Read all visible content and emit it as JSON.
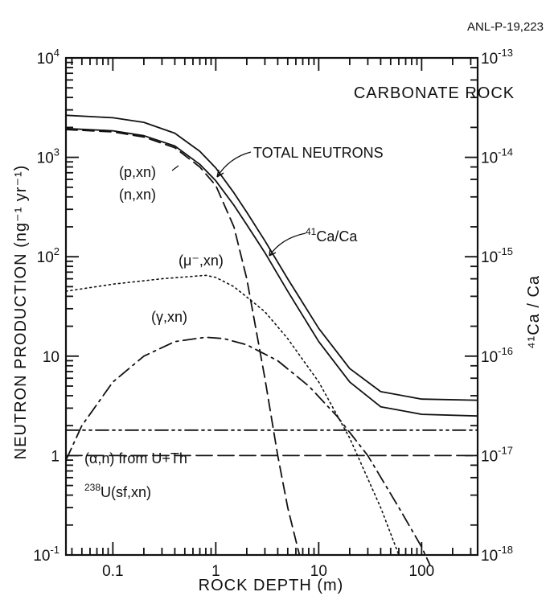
{
  "figure": {
    "ref_id": "ANL-P-19,223",
    "panel_label": "CARBONATE ROCK"
  },
  "chart_data": {
    "type": "line",
    "x_scale": "log",
    "y_scale": "log",
    "xlim": [
      0.035,
      350
    ],
    "ylim": [
      0.1,
      10000
    ],
    "y2lim": [
      1e-18,
      1e-13
    ],
    "xlabel": "ROCK DEPTH (m)",
    "ylabel": "NEUTRON PRODUCTION (ng⁻¹ yr⁻¹)",
    "y2label": "⁴¹Ca / Ca",
    "x_ticks": [
      {
        "value": 0.1,
        "label": "0.1"
      },
      {
        "value": 1,
        "label": "1"
      },
      {
        "value": 10,
        "label": "10"
      },
      {
        "value": 100,
        "label": "100"
      }
    ],
    "y_ticks": [
      {
        "value": 0.1,
        "base": "10",
        "exp": "-1"
      },
      {
        "value": 1,
        "base": "1",
        "exp": ""
      },
      {
        "value": 10,
        "base": "10",
        "exp": ""
      },
      {
        "value": 100,
        "base": "10",
        "exp": "2"
      },
      {
        "value": 1000,
        "base": "10",
        "exp": "3"
      },
      {
        "value": 10000,
        "base": "10",
        "exp": "4"
      }
    ],
    "y2_ticks": [
      {
        "value": 1e-18,
        "base": "10",
        "exp": "-18"
      },
      {
        "value": 1e-17,
        "base": "10",
        "exp": "-17"
      },
      {
        "value": 1e-16,
        "base": "10",
        "exp": "-16"
      },
      {
        "value": 1e-15,
        "base": "10",
        "exp": "-15"
      },
      {
        "value": 1e-14,
        "base": "10",
        "exp": "-14"
      },
      {
        "value": 1e-13,
        "base": "10",
        "exp": "-13"
      }
    ],
    "series": [
      {
        "name": "TOTAL NEUTRONS",
        "style": "solid",
        "x": [
          0.035,
          0.1,
          0.2,
          0.4,
          0.7,
          1,
          1.5,
          2,
          3,
          5,
          10,
          20,
          40,
          100,
          350
        ],
        "y": [
          1950,
          1850,
          1650,
          1300,
          850,
          580,
          330,
          210,
          110,
          45,
          14,
          5.5,
          3.1,
          2.6,
          2.5
        ]
      },
      {
        "name": "⁴¹Ca/Ca",
        "style": "solid",
        "x": [
          0.035,
          0.1,
          0.2,
          0.4,
          0.7,
          1,
          1.5,
          2,
          3,
          5,
          10,
          20,
          40,
          100,
          350
        ],
        "y": [
          2650,
          2500,
          2250,
          1750,
          1150,
          780,
          440,
          280,
          145,
          60,
          19,
          7.5,
          4.4,
          3.7,
          3.6
        ]
      },
      {
        "name": "(p,xn) (n,xn)",
        "style": "dashed",
        "x": [
          0.035,
          0.1,
          0.2,
          0.4,
          0.7,
          1,
          1.5,
          2,
          3,
          4,
          5,
          6.5
        ],
        "y": [
          1900,
          1800,
          1600,
          1250,
          800,
          520,
          200,
          60,
          6,
          1,
          0.3,
          0.1
        ]
      },
      {
        "name": "(μ⁻,xn)",
        "style": "dotted",
        "x": [
          0.035,
          0.1,
          0.3,
          0.8,
          1,
          1.5,
          3,
          5,
          10,
          20,
          40,
          60
        ],
        "y": [
          45,
          53,
          60,
          65,
          62,
          50,
          28,
          15,
          5.5,
          1.5,
          0.3,
          0.1
        ]
      },
      {
        "name": "(γ,xn)",
        "style": "dashdot",
        "x": [
          0.035,
          0.05,
          0.1,
          0.2,
          0.4,
          0.8,
          1.2,
          2,
          4,
          8,
          15,
          30,
          60,
          100,
          120
        ],
        "y": [
          0.9,
          2,
          5.5,
          10,
          14,
          15.5,
          15,
          13,
          9,
          5,
          2.5,
          1,
          0.3,
          0.12,
          0.08
        ]
      },
      {
        "name": "(α,n) from U+Th",
        "style": "dashdotdot",
        "x": [
          0.035,
          350
        ],
        "y": [
          1.8,
          1.8
        ]
      },
      {
        "name": "²³⁸U(sf,xn)",
        "style": "longdash",
        "x": [
          0.035,
          350
        ],
        "y": [
          1.0,
          1.0
        ]
      }
    ]
  },
  "annotations": {
    "total_neutrons": "TOTAL NEUTRONS",
    "ca_label_sup": "41",
    "ca_label": "Ca/Ca",
    "pxn": "(p,xn)",
    "nxn": "(n,xn)",
    "mu": "(μ⁻,xn)",
    "gamma": "(γ,xn)",
    "alpha": "(α,n) from U+Th",
    "u_sup": "238",
    "u_label": "U(sf,xn)"
  }
}
